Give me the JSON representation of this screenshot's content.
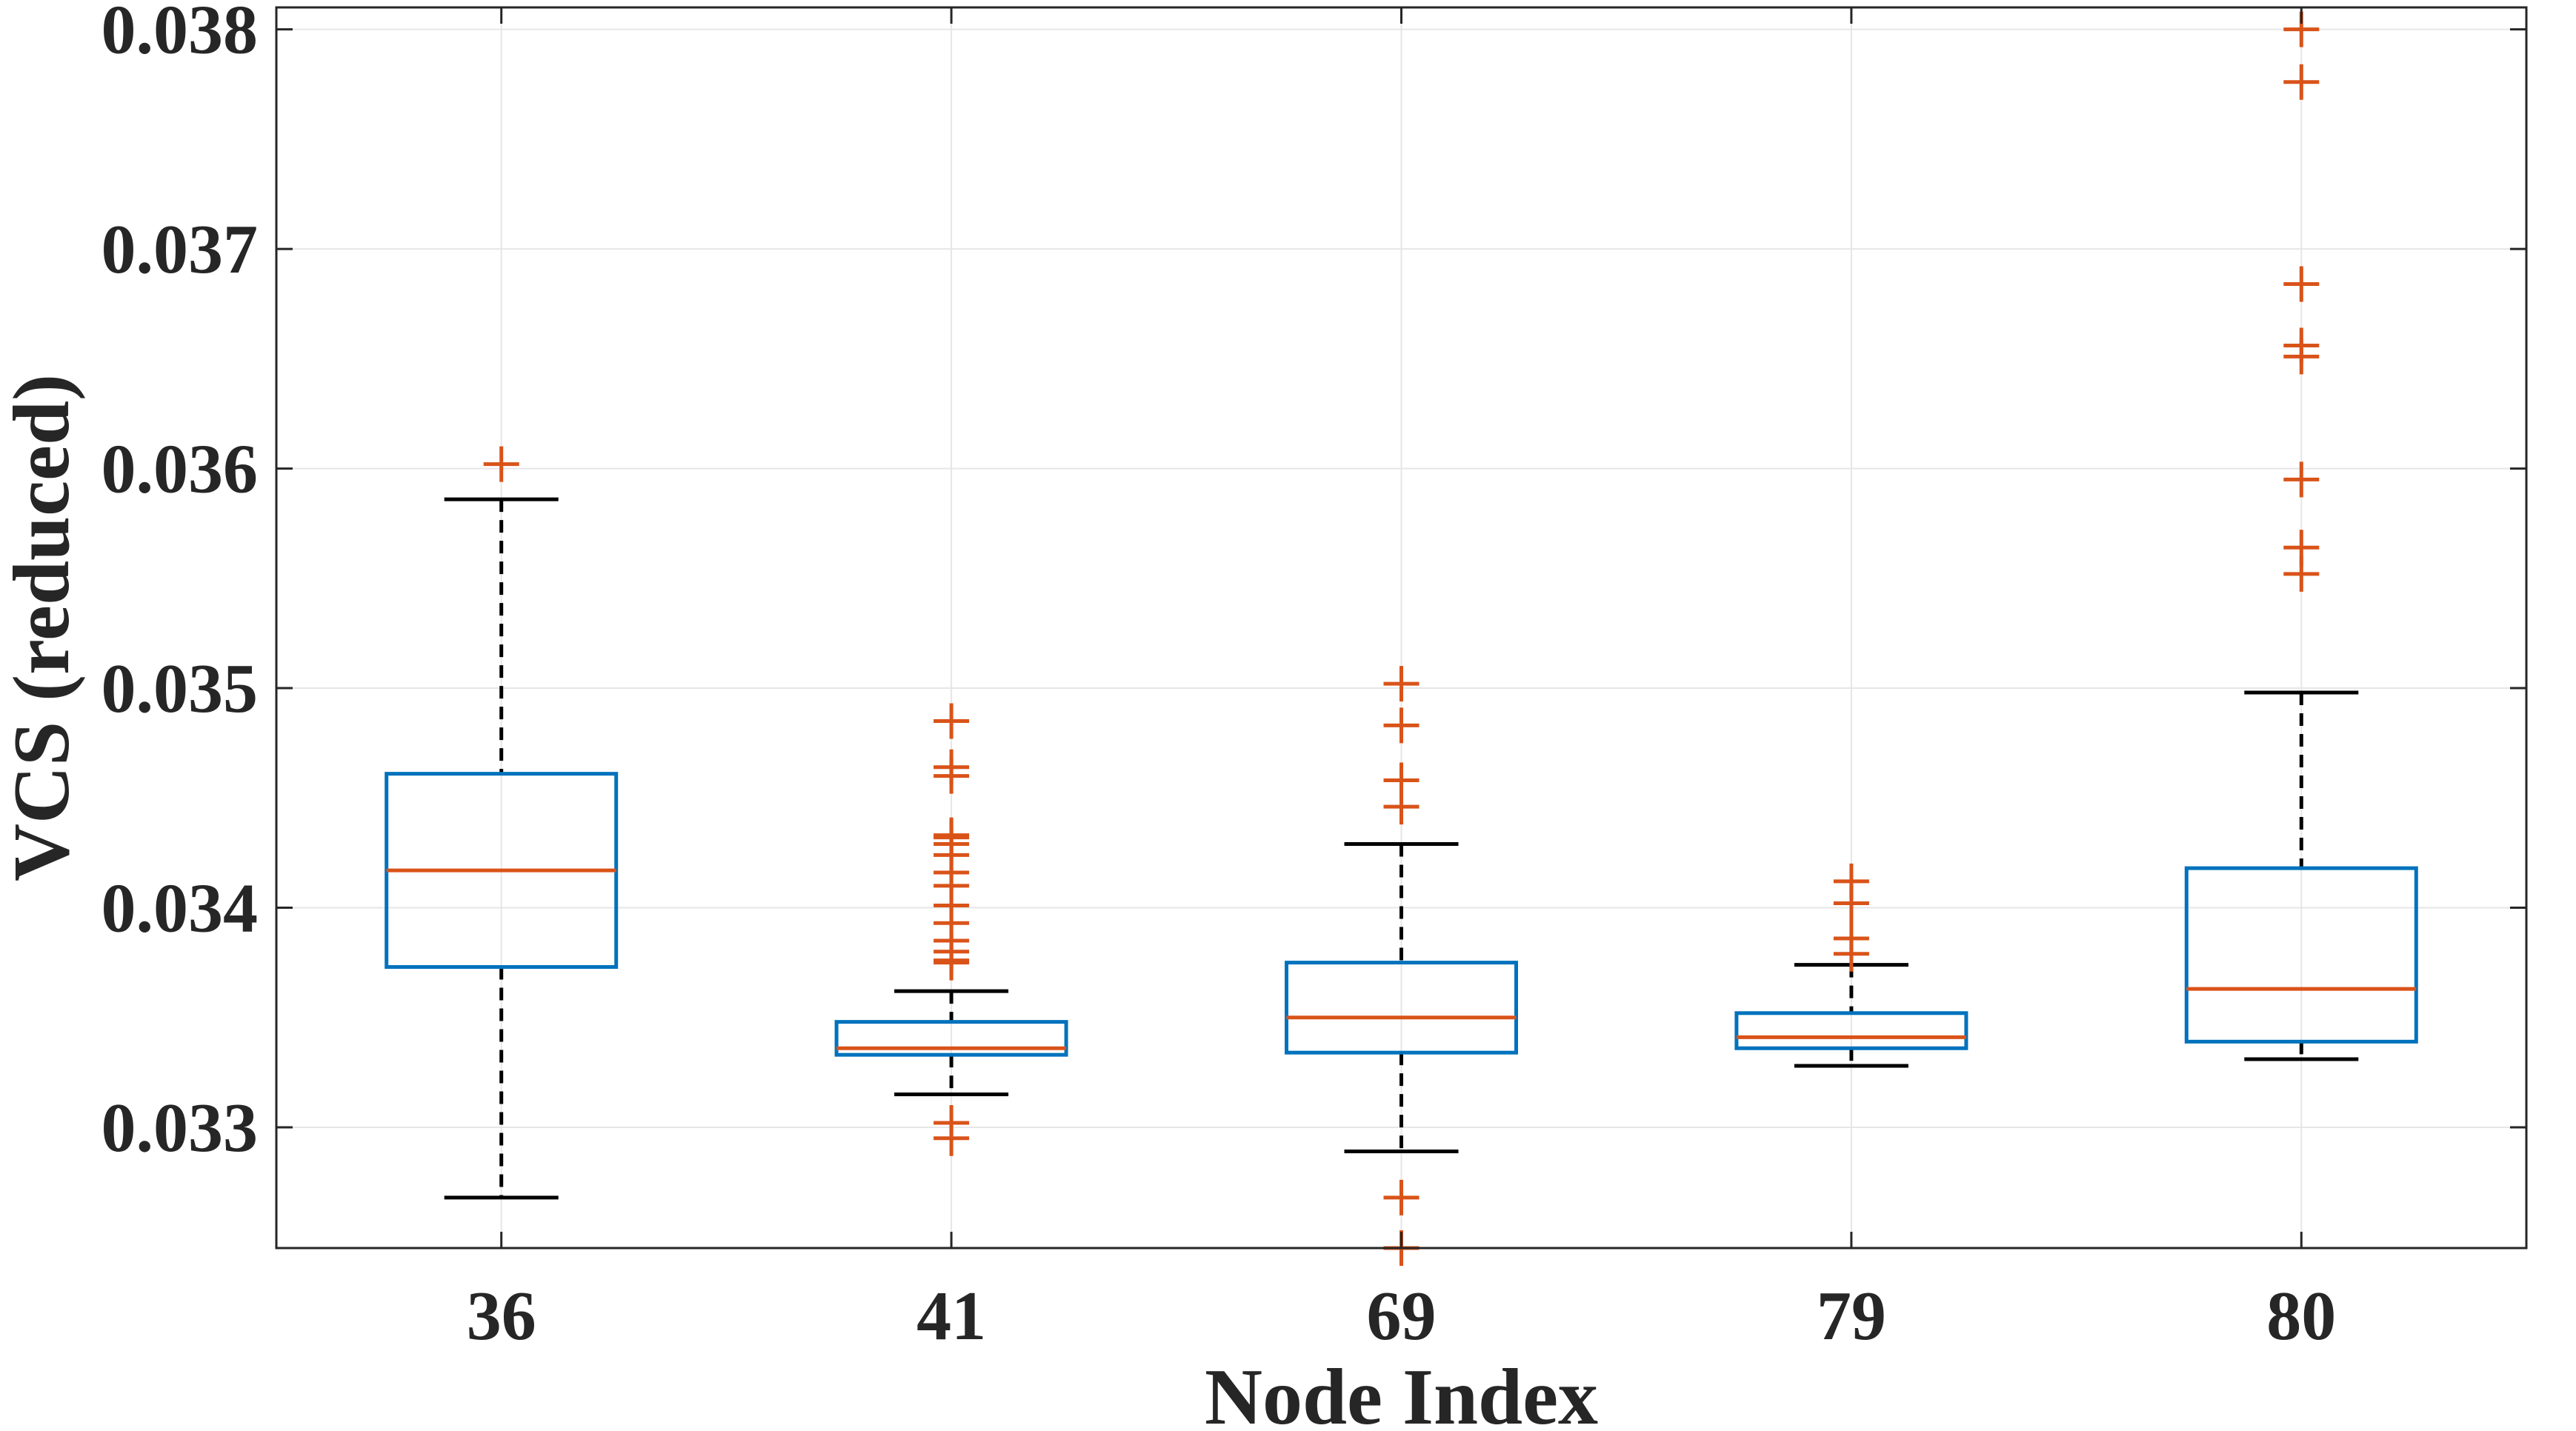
{
  "chart_data": {
    "type": "boxplot",
    "title": "",
    "xlabel": "Node Index",
    "ylabel": "VCS (reduced)",
    "ylim": [
      0.03245,
      0.0381
    ],
    "yticks": [
      0.033,
      0.034,
      0.035,
      0.036,
      0.037,
      0.038
    ],
    "ytick_labels": [
      "0.033",
      "0.034",
      "0.035",
      "0.036",
      "0.037",
      "0.038"
    ],
    "grid": true,
    "categories": [
      "36",
      "41",
      "69",
      "79",
      "80"
    ],
    "boxes": [
      {
        "category": "36",
        "whisker_low": 0.03268,
        "q1": 0.03373,
        "median": 0.03417,
        "q3": 0.03461,
        "whisker_high": 0.03586,
        "outliers": [
          0.03602
        ]
      },
      {
        "category": "41",
        "whisker_low": 0.03315,
        "q1": 0.03333,
        "median": 0.03336,
        "q3": 0.03348,
        "whisker_high": 0.03362,
        "outliers": [
          0.03295,
          0.03302,
          0.03375,
          0.03376,
          0.0338,
          0.03385,
          0.03393,
          0.03401,
          0.0341,
          0.03416,
          0.03424,
          0.03429,
          0.03432,
          0.03433,
          0.0346,
          0.03464,
          0.03485
        ]
      },
      {
        "category": "69",
        "whisker_low": 0.03289,
        "q1": 0.03334,
        "median": 0.0335,
        "q3": 0.03375,
        "whisker_high": 0.03429,
        "outliers": [
          0.03245,
          0.03268,
          0.03446,
          0.03458,
          0.03483,
          0.03502
        ]
      },
      {
        "category": "79",
        "whisker_low": 0.03328,
        "q1": 0.03336,
        "median": 0.03341,
        "q3": 0.03352,
        "whisker_high": 0.03374,
        "outliers": [
          0.03379,
          0.03386,
          0.03402,
          0.03412
        ]
      },
      {
        "category": "80",
        "whisker_low": 0.03331,
        "q1": 0.03339,
        "median": 0.03363,
        "q3": 0.03418,
        "whisker_high": 0.03498,
        "outliers": [
          0.03552,
          0.03564,
          0.03595,
          0.03651,
          0.03656,
          0.03684,
          0.03776,
          0.038
        ]
      }
    ],
    "colors": {
      "box": "#0072BD",
      "median": "#D95319",
      "outlier": "#D95319",
      "whisker": "#000000",
      "grid": "#e6e6e6",
      "axis": "#262626"
    }
  }
}
